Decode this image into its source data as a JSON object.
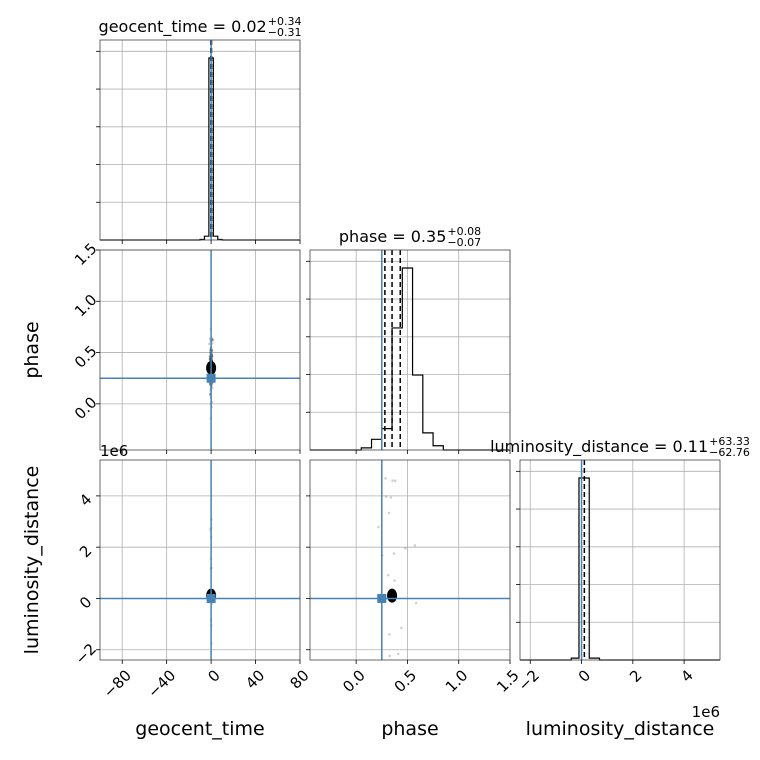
{
  "chart_data": {
    "type": "corner",
    "parameters": [
      "geocent_time",
      "phase",
      "luminosity_distance"
    ],
    "axes": {
      "geocent_time": {
        "range": [
          -100,
          80
        ],
        "ticks": [
          -80,
          -40,
          0,
          40,
          80
        ],
        "tick_labels": [
          "−80",
          "−40",
          "0",
          "40",
          "80"
        ]
      },
      "phase": {
        "range": [
          -0.45,
          1.5
        ],
        "ticks": [
          0.0,
          0.5,
          1.0,
          1.5
        ],
        "tick_labels": [
          "0.0",
          "0.5",
          "1.0",
          "1.5"
        ]
      },
      "luminosity_distance": {
        "range": [
          -2.4,
          5.4
        ],
        "ticks": [
          -2,
          0,
          2,
          4
        ],
        "tick_labels": [
          "−2",
          "0",
          "2",
          "4"
        ],
        "offset_text": "1e6"
      }
    },
    "titles": [
      {
        "param": "geocent_time",
        "label": "geocent_time",
        "median": "0.02",
        "plus": "+0.34",
        "minus": "−0.31"
      },
      {
        "param": "phase",
        "label": "phase",
        "median": "0.35",
        "plus": "+0.08",
        "minus": "−0.07"
      },
      {
        "param": "luminosity_distance",
        "label": "luminosity_distance",
        "median": "0.11",
        "plus": "+63.33",
        "minus": "−62.76"
      }
    ],
    "truths": {
      "geocent_time": 0.0,
      "phase": 0.25,
      "luminosity_distance": 0.0
    },
    "quantiles": {
      "geocent_time": [
        -0.29,
        0.02,
        0.36
      ],
      "phase": [
        0.28,
        0.35,
        0.43
      ],
      "luminosity_distance": [
        -62.65,
        0.11,
        63.44
      ]
    },
    "histograms": {
      "geocent_time": {
        "edges": [
          -100,
          -90,
          -80,
          -70,
          -60,
          -50,
          -40,
          -30,
          -20,
          -10,
          -6,
          -2,
          2,
          6,
          10,
          20,
          30,
          40,
          50,
          60,
          70,
          80
        ],
        "values": [
          0,
          0,
          0,
          0,
          0,
          0,
          0,
          0,
          0,
          0.003,
          0.02,
          0.96,
          0.02,
          0.003,
          0,
          0,
          0,
          0,
          0,
          0,
          0
        ]
      },
      "phase": {
        "edges": [
          -0.45,
          -0.35,
          -0.25,
          -0.15,
          -0.05,
          0.05,
          0.15,
          0.25,
          0.35,
          0.45,
          0.55,
          0.65,
          0.75,
          0.85,
          0.95,
          1.05,
          1.15,
          1.25,
          1.35,
          1.45,
          1.5
        ],
        "values": [
          0,
          0,
          0,
          0,
          0,
          0.01,
          0.05,
          0.1,
          0.57,
          0.85,
          0.35,
          0.08,
          0.02,
          0,
          0,
          0,
          0,
          0,
          0,
          0
        ]
      },
      "luminosity_distance": {
        "edges": [
          -2.4,
          -2.0,
          -1.6,
          -1.2,
          -0.8,
          -0.4,
          -0.1,
          0.1,
          0.3,
          0.7,
          1.1,
          1.5,
          1.9,
          2.3,
          2.7,
          3.1,
          3.5,
          3.9,
          4.3,
          4.7,
          5.1,
          5.4
        ],
        "values": [
          0,
          0,
          0,
          0,
          0,
          0.01,
          0.99,
          0.99,
          0.01,
          0,
          0,
          0,
          0,
          0,
          0,
          0,
          0,
          0,
          0,
          0,
          0
        ]
      }
    },
    "colors": {
      "truth": "#4682b4",
      "hist": "#000000",
      "grid": "#b0b0b0",
      "scatter": "#000000"
    },
    "grid": true
  }
}
